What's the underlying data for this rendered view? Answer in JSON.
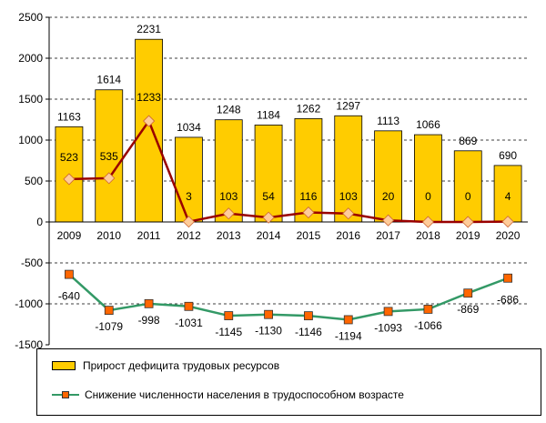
{
  "chart_data": {
    "type": "bar",
    "categories": [
      "2009",
      "2010",
      "2011",
      "2012",
      "2013",
      "2014",
      "2015",
      "2016",
      "2017",
      "2018",
      "2019",
      "2020"
    ],
    "ylim": [
      -1500,
      2500
    ],
    "yticks": [
      -1500,
      -1000,
      -500,
      0,
      500,
      1000,
      1500,
      2000,
      2500
    ],
    "grid": true,
    "legend_placement": "bottom",
    "series": [
      {
        "name": "Прирост дефицита трудовых ресурсов",
        "type": "bar",
        "color": "#FFCC00",
        "values": [
          1163,
          1614,
          2231,
          1034,
          1248,
          1184,
          1262,
          1297,
          1113,
          1066,
          869,
          690
        ]
      },
      {
        "type": "line",
        "color": "#990000",
        "marker_color": "#FFCC99",
        "marker": "diamond",
        "values": [
          523,
          535,
          1233,
          3,
          103,
          54,
          116,
          103,
          20,
          0,
          0,
          4
        ]
      },
      {
        "name": "Снижение численности населения в трудоспособном возрасте",
        "type": "line",
        "color": "#339966",
        "marker_color": "#FF6600",
        "marker": "square",
        "values": [
          -640,
          -1079,
          -998,
          -1031,
          -1145,
          -1130,
          -1146,
          -1194,
          -1093,
          -1066,
          -869,
          -686
        ]
      }
    ]
  }
}
